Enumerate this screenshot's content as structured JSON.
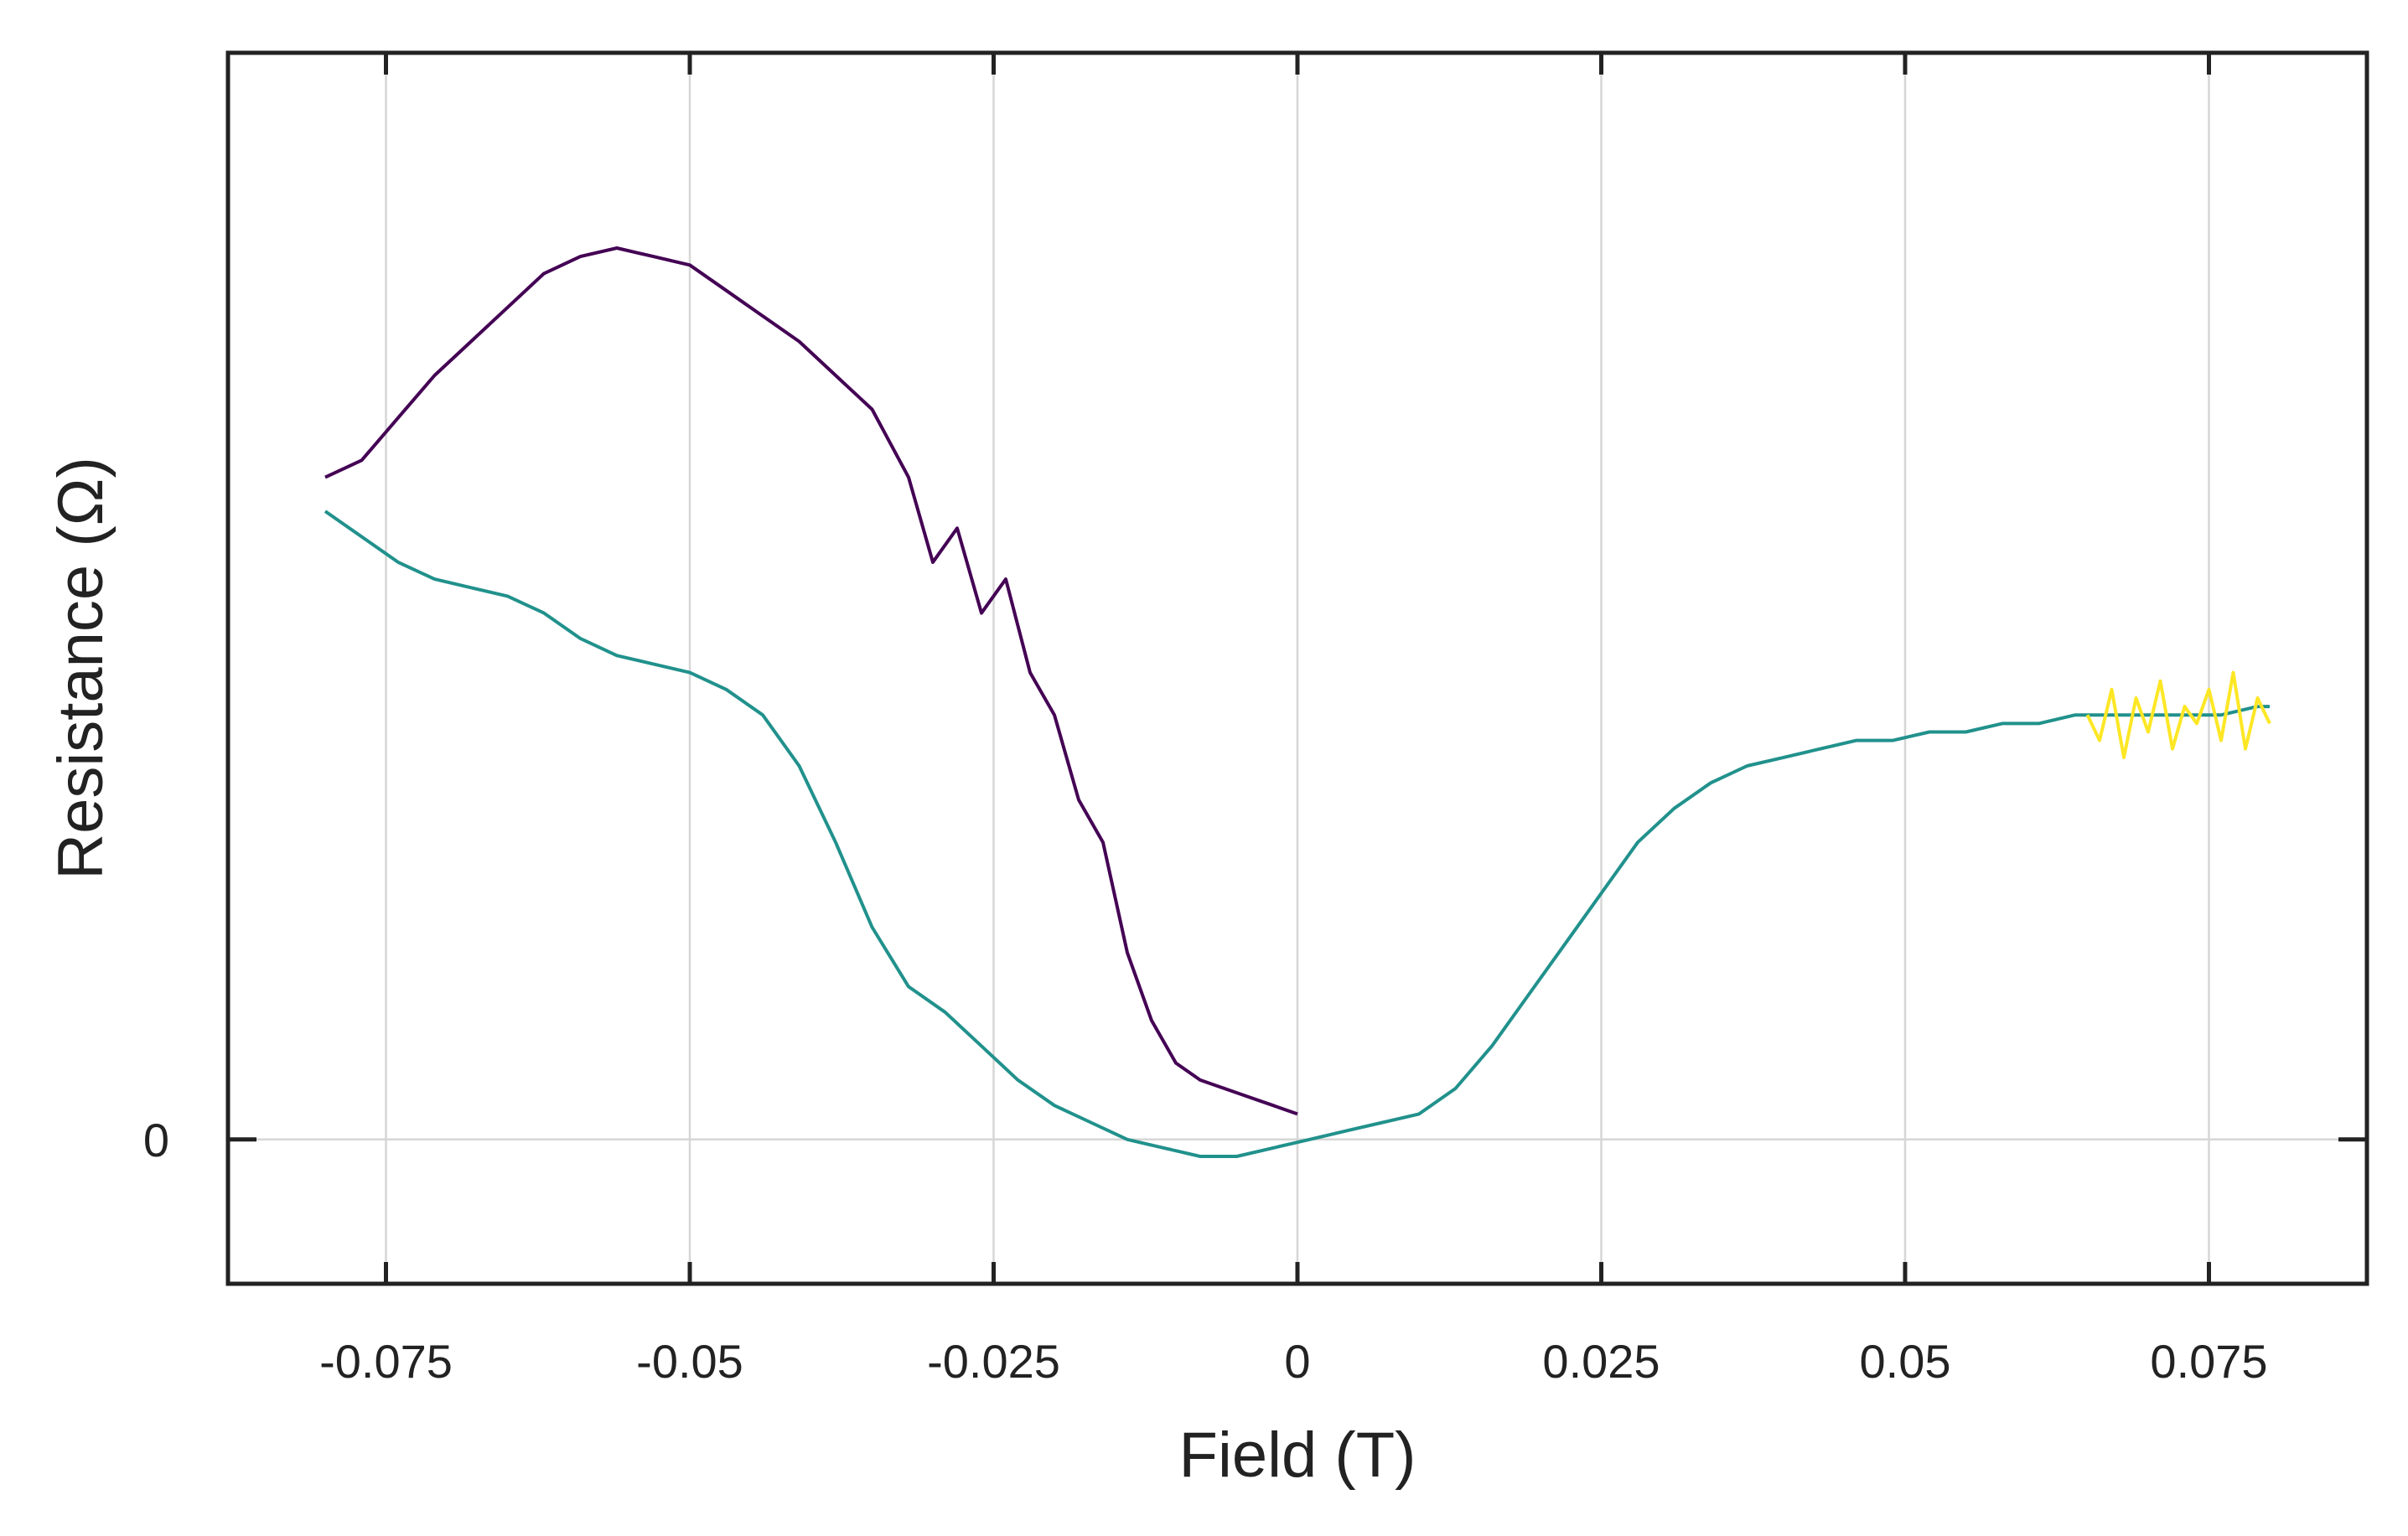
{
  "chart_data": {
    "type": "line",
    "title": "",
    "xlabel": "Field (T)",
    "ylabel": "Resistance (Ω)",
    "xlim": [
      -0.088,
      0.088
    ],
    "ylim": [
      -0.17,
      1.28
    ],
    "grid": true,
    "xticks": [
      -0.075,
      -0.05,
      -0.025,
      0,
      0.025,
      0.05,
      0.075
    ],
    "xtick_labels": [
      "-0.075",
      "-0.05",
      "-0.025",
      "0",
      "0.025",
      "0.05",
      "0.075"
    ],
    "yticks": [
      0
    ],
    "ytick_labels": [
      "0"
    ],
    "colors": {
      "axis": "#222222",
      "grid": "#d6d6d6"
    },
    "series": [
      {
        "color": "#440154",
        "x": [
          -0.08,
          -0.077,
          -0.074,
          -0.071,
          -0.068,
          -0.065,
          -0.062,
          -0.059,
          -0.056,
          -0.053,
          -0.05,
          -0.047,
          -0.044,
          -0.041,
          -0.038,
          -0.035,
          -0.032,
          -0.03,
          -0.028,
          -0.026,
          -0.024,
          -0.022,
          -0.02,
          -0.018,
          -0.016,
          -0.014,
          -0.012,
          -0.01,
          -0.008,
          -0.006,
          -0.004,
          -0.002,
          0
        ],
        "y": [
          0.78,
          0.8,
          0.85,
          0.9,
          0.94,
          0.98,
          1.02,
          1.04,
          1.05,
          1.04,
          1.03,
          1.0,
          0.97,
          0.94,
          0.9,
          0.86,
          0.78,
          0.68,
          0.72,
          0.62,
          0.66,
          0.55,
          0.5,
          0.4,
          0.35,
          0.22,
          0.14,
          0.09,
          0.07,
          0.06,
          0.05,
          0.04,
          0.03
        ]
      },
      {
        "color": "#21918c",
        "x": [
          -0.08,
          -0.077,
          -0.074,
          -0.071,
          -0.068,
          -0.065,
          -0.062,
          -0.059,
          -0.056,
          -0.053,
          -0.05,
          -0.047,
          -0.044,
          -0.041,
          -0.038,
          -0.035,
          -0.032,
          -0.029,
          -0.026,
          -0.023,
          -0.02,
          -0.017,
          -0.014,
          -0.011,
          -0.008,
          -0.005,
          -0.002,
          0.001,
          0.004,
          0.007,
          0.01,
          0.013,
          0.016,
          0.019,
          0.022,
          0.025,
          0.028,
          0.031,
          0.034,
          0.037,
          0.04,
          0.043,
          0.046,
          0.049,
          0.052,
          0.055,
          0.058,
          0.061,
          0.064,
          0.067,
          0.07,
          0.073,
          0.076,
          0.079,
          0.08
        ],
        "y": [
          0.74,
          0.71,
          0.68,
          0.66,
          0.65,
          0.64,
          0.62,
          0.59,
          0.57,
          0.56,
          0.55,
          0.53,
          0.5,
          0.44,
          0.35,
          0.25,
          0.18,
          0.15,
          0.11,
          0.07,
          0.04,
          0.02,
          0.0,
          -0.01,
          -0.02,
          -0.02,
          -0.01,
          0.0,
          0.01,
          0.02,
          0.03,
          0.06,
          0.11,
          0.17,
          0.23,
          0.29,
          0.35,
          0.39,
          0.42,
          0.44,
          0.45,
          0.46,
          0.47,
          0.47,
          0.48,
          0.48,
          0.49,
          0.49,
          0.5,
          0.5,
          0.5,
          0.5,
          0.5,
          0.51,
          0.51
        ]
      },
      {
        "color": "#fde725",
        "x": [
          0.065,
          0.066,
          0.067,
          0.068,
          0.069,
          0.07,
          0.071,
          0.072,
          0.073,
          0.074,
          0.075,
          0.076,
          0.077,
          0.078,
          0.079,
          0.08
        ],
        "y": [
          0.5,
          0.47,
          0.53,
          0.45,
          0.52,
          0.48,
          0.54,
          0.46,
          0.51,
          0.49,
          0.53,
          0.47,
          0.55,
          0.46,
          0.52,
          0.49
        ]
      }
    ]
  }
}
